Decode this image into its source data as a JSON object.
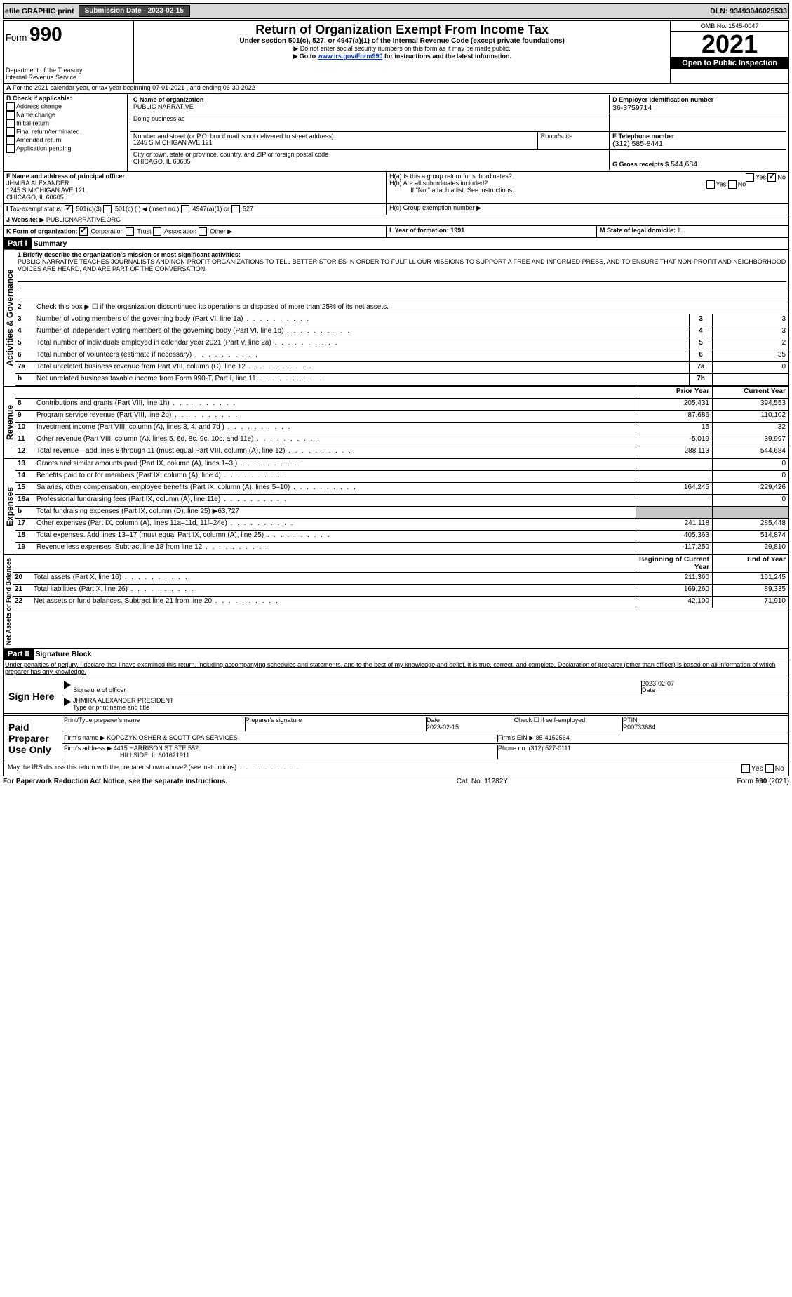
{
  "topbar": {
    "efile": "efile GRAPHIC print",
    "subdate_lbl": "Submission Date - 2023-02-15",
    "dln_lbl": "DLN: 93493046025533"
  },
  "header": {
    "form": "990",
    "form_pre": "Form",
    "title": "Return of Organization Exempt From Income Tax",
    "subtitle": "Under section 501(c), 527, or 4947(a)(1) of the Internal Revenue Code (except private foundations)",
    "warn1": "▶ Do not enter social security numbers on this form as it may be made public.",
    "warn2_pre": "▶ Go to ",
    "warn2_link": "www.irs.gov/Form990",
    "warn2_post": " for instructions and the latest information.",
    "dept": "Department of the Treasury",
    "irs": "Internal Revenue Service",
    "omb": "OMB No. 1545-0047",
    "year": "2021",
    "open": "Open to Public Inspection"
  },
  "A": {
    "text": "For the 2021 calendar year, or tax year beginning 07-01-2021    , and ending 06-30-2022"
  },
  "B": {
    "hdr": "B Check if applicable:",
    "items": [
      "Address change",
      "Name change",
      "Initial return",
      "Final return/terminated",
      "Amended return",
      "Application pending"
    ]
  },
  "C": {
    "lbl": "C Name of organization",
    "name": "PUBLIC NARRATIVE",
    "dba_lbl": "Doing business as",
    "dba": "",
    "addr_lbl": "Number and street (or P.O. box if mail is not delivered to street address)",
    "room_lbl": "Room/suite",
    "addr": "1245 S MICHIGAN AVE 121",
    "city_lbl": "City or town, state or province, country, and ZIP or foreign postal code",
    "city": "CHICAGO, IL  60605"
  },
  "D": {
    "lbl": "D Employer identification number",
    "val": "36-3759714"
  },
  "E": {
    "lbl": "E Telephone number",
    "val": "(312) 585-8441"
  },
  "G": {
    "lbl": "G Gross receipts $",
    "val": "544,684"
  },
  "F": {
    "lbl": "F Name and address of principal officer:",
    "name": "JHMIRA ALEXANDER",
    "addr1": "1245 S MICHIGAN AVE 121",
    "addr2": "CHICAGO, IL  60605"
  },
  "H": {
    "a": "H(a)  Is this a group return for subordinates?",
    "b": "H(b)  Are all subordinates included?",
    "bnote": "If \"No,\" attach a list. See instructions.",
    "c": "H(c)  Group exemption number ▶",
    "yes": "Yes",
    "no": "No"
  },
  "I": {
    "lbl": "Tax-exempt status:",
    "c3": "501(c)(3)",
    "c": "501(c) (   ) ◀ (insert no.)",
    "a": "4947(a)(1) or",
    "s": "527"
  },
  "J": {
    "lbl": "Website: ▶",
    "val": "PUBLICNARRATIVE.ORG"
  },
  "K": {
    "lbl": "K Form of organization:",
    "corp": "Corporation",
    "trust": "Trust",
    "assoc": "Association",
    "other": "Other ▶"
  },
  "L": {
    "lbl": "L Year of formation: 1991"
  },
  "M": {
    "lbl": "M State of legal domicile: IL"
  },
  "part1": {
    "lbl": "Part I",
    "title": "Summary"
  },
  "mission": {
    "l1": "1  Briefly describe the organization's mission or most significant activities:",
    "text": "PUBLIC NARRATIVE TEACHES JOURNALISTS AND NON-PROFIT ORGANIZATIONS TO TELL BETTER STORIES IN ORDER TO FULFILL OUR MISSIONS TO SUPPORT A FREE AND INFORMED PRESS, AND TO ENSURE THAT NON-PROFIT AND NEIGHBORHOOD VOICES ARE HEARD, AND ARE PART OF THE CONVERSATION."
  },
  "gov": {
    "l2": "Check this box ▶ ☐  if the organization discontinued its operations or disposed of more than 25% of its net assets.",
    "rows": [
      {
        "n": "3",
        "d": "Number of voting members of the governing body (Part VI, line 1a)",
        "box": "3",
        "v": "3"
      },
      {
        "n": "4",
        "d": "Number of independent voting members of the governing body (Part VI, line 1b)",
        "box": "4",
        "v": "3"
      },
      {
        "n": "5",
        "d": "Total number of individuals employed in calendar year 2021 (Part V, line 2a)",
        "box": "5",
        "v": "2"
      },
      {
        "n": "6",
        "d": "Total number of volunteers (estimate if necessary)",
        "box": "6",
        "v": "35"
      },
      {
        "n": "7a",
        "d": "Total unrelated business revenue from Part VIII, column (C), line 12",
        "box": "7a",
        "v": "0"
      },
      {
        "n": "b",
        "d": "Net unrelated business taxable income from Form 990-T, Part I, line 11",
        "box": "7b",
        "v": ""
      }
    ]
  },
  "cols": {
    "prior": "Prior Year",
    "curr": "Current Year",
    "beg": "Beginning of Current Year",
    "end": "End of Year"
  },
  "rev": {
    "lbl": "Revenue",
    "rows": [
      {
        "n": "8",
        "d": "Contributions and grants (Part VIII, line 1h)",
        "p": "205,431",
        "c": "394,553"
      },
      {
        "n": "9",
        "d": "Program service revenue (Part VIII, line 2g)",
        "p": "87,686",
        "c": "110,102"
      },
      {
        "n": "10",
        "d": "Investment income (Part VIII, column (A), lines 3, 4, and 7d )",
        "p": "15",
        "c": "32"
      },
      {
        "n": "11",
        "d": "Other revenue (Part VIII, column (A), lines 5, 6d, 8c, 9c, 10c, and 11e)",
        "p": "-5,019",
        "c": "39,997"
      },
      {
        "n": "12",
        "d": "Total revenue—add lines 8 through 11 (must equal Part VIII, column (A), line 12)",
        "p": "288,113",
        "c": "544,684"
      }
    ]
  },
  "exp": {
    "lbl": "Expenses",
    "rows": [
      {
        "n": "13",
        "d": "Grants and similar amounts paid (Part IX, column (A), lines 1–3 )",
        "p": "",
        "c": "0"
      },
      {
        "n": "14",
        "d": "Benefits paid to or for members (Part IX, column (A), line 4)",
        "p": "",
        "c": "0"
      },
      {
        "n": "15",
        "d": "Salaries, other compensation, employee benefits (Part IX, column (A), lines 5–10)",
        "p": "164,245",
        "c": "229,426"
      },
      {
        "n": "16a",
        "d": "Professional fundraising fees (Part IX, column (A), line 11e)",
        "p": "",
        "c": "0"
      }
    ],
    "b": "Total fundraising expenses (Part IX, column (D), line 25) ▶63,727",
    "rows2": [
      {
        "n": "17",
        "d": "Other expenses (Part IX, column (A), lines 11a–11d, 11f–24e)",
        "p": "241,118",
        "c": "285,448"
      },
      {
        "n": "18",
        "d": "Total expenses. Add lines 13–17 (must equal Part IX, column (A), line 25)",
        "p": "405,363",
        "c": "514,874"
      },
      {
        "n": "19",
        "d": "Revenue less expenses. Subtract line 18 from line 12",
        "p": "-117,250",
        "c": "29,810"
      }
    ]
  },
  "net": {
    "lbl": "Net Assets or Fund Balances",
    "rows": [
      {
        "n": "20",
        "d": "Total assets (Part X, line 16)",
        "p": "211,360",
        "c": "161,245"
      },
      {
        "n": "21",
        "d": "Total liabilities (Part X, line 26)",
        "p": "169,260",
        "c": "89,335"
      },
      {
        "n": "22",
        "d": "Net assets or fund balances. Subtract line 21 from line 20",
        "p": "42,100",
        "c": "71,910"
      }
    ]
  },
  "part2": {
    "lbl": "Part II",
    "title": "Signature Block",
    "decl": "Under penalties of perjury, I declare that I have examined this return, including accompanying schedules and statements, and to the best of my knowledge and belief, it is true, correct, and complete. Declaration of preparer (other than officer) is based on all information of which preparer has any knowledge."
  },
  "sign": {
    "lbl": "Sign Here",
    "sig": "Signature of officer",
    "date": "Date",
    "datev": "2023-02-07",
    "name": "JHMIRA ALEXANDER  PRESIDENT",
    "name_lbl": "Type or print name and title"
  },
  "prep": {
    "lbl": "Paid Preparer Use Only",
    "h1": "Print/Type preparer's name",
    "h2": "Preparer's signature",
    "h3": "Date",
    "h3v": "2023-02-15",
    "h4": "Check ☐ if self-employed",
    "h5": "PTIN",
    "ptin": "P00733684",
    "firm_lbl": "Firm's name    ▶",
    "firm": "KOPCZYK OSHER & SCOTT CPA SERVICES",
    "ein_lbl": "Firm's EIN ▶",
    "ein": "85-4152564",
    "addr_lbl": "Firm's address ▶",
    "addr1": "4415 HARRISON ST STE 552",
    "addr2": "HILLSIDE, IL  601621911",
    "ph_lbl": "Phone no.",
    "ph": "(312) 527-0111"
  },
  "discuss": "May the IRS discuss this return with the preparer shown above? (see instructions)",
  "foot": {
    "l": "For Paperwork Reduction Act Notice, see the separate instructions.",
    "c": "Cat. No. 11282Y",
    "r": "Form 990 (2021)"
  }
}
